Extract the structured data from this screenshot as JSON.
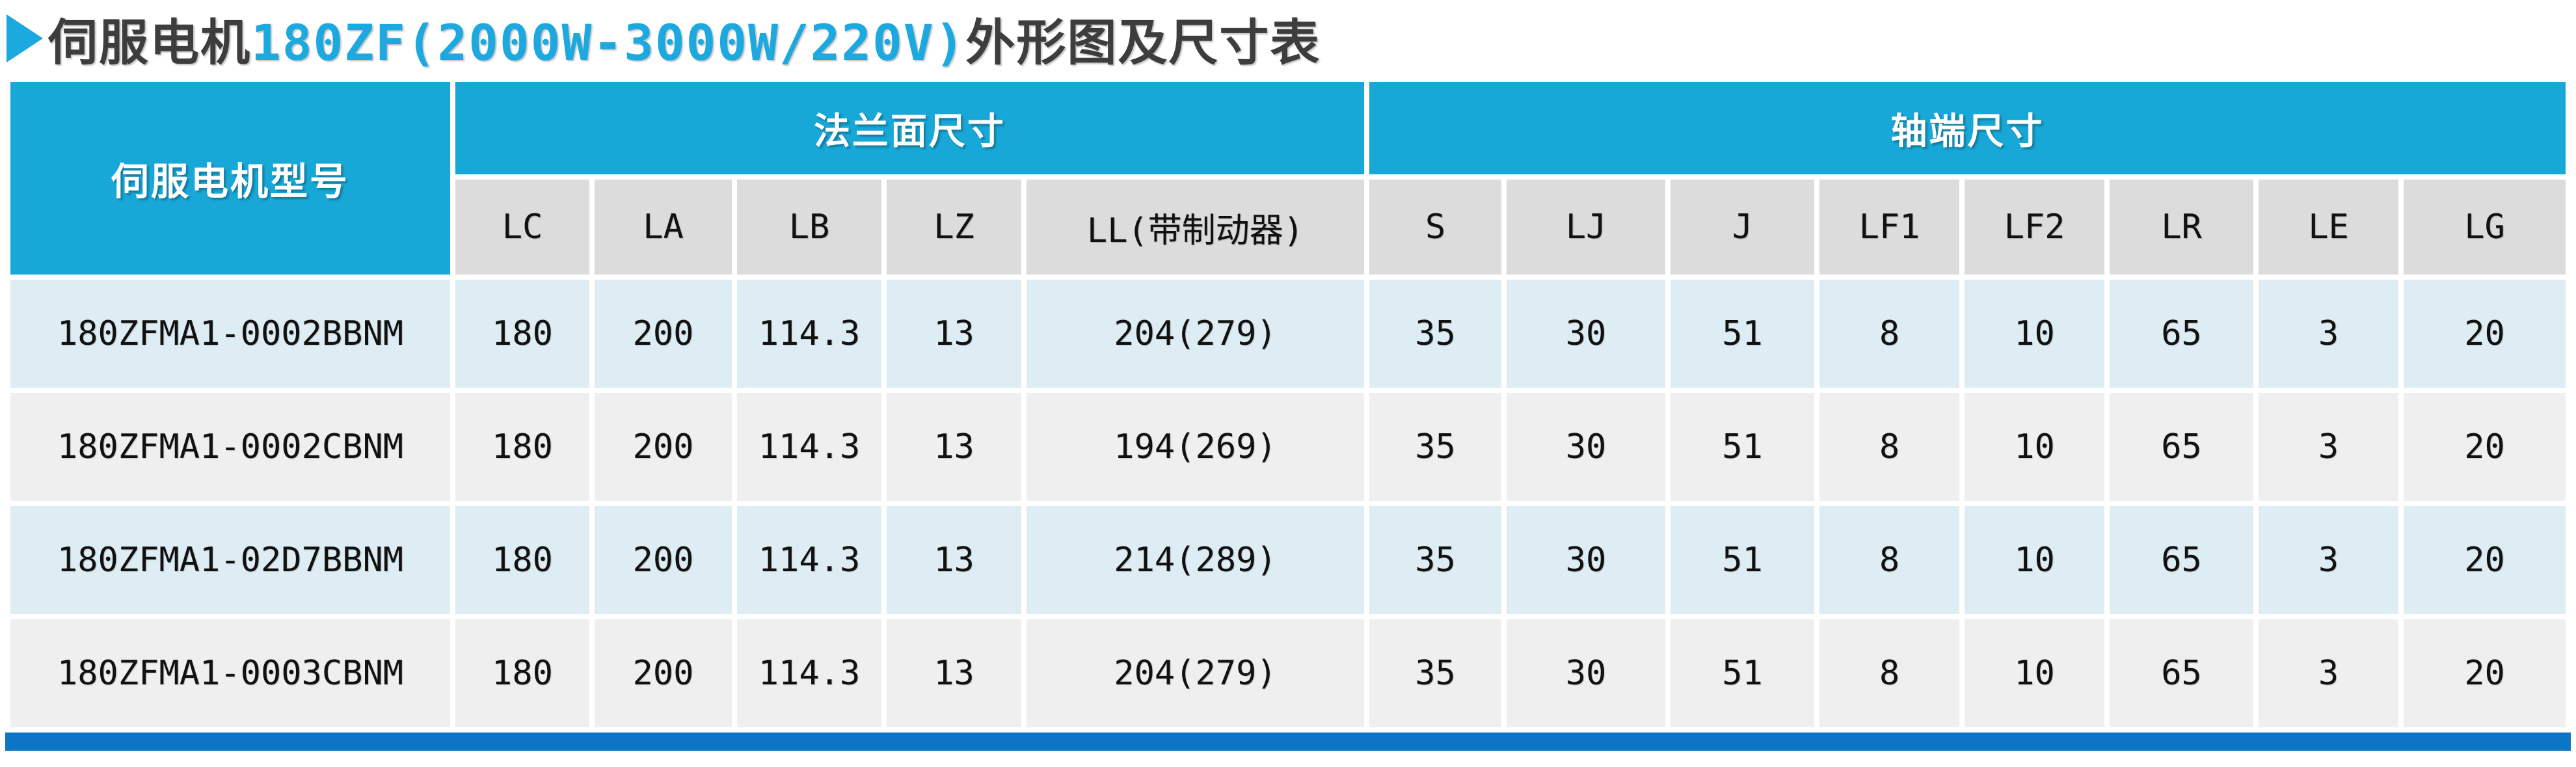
{
  "title": {
    "part_dark_1": "伺服电机",
    "part_blue": "180ZF(2000W-3000W/220V)",
    "part_dark_2": "外形图及尺寸表"
  },
  "colors": {
    "header_cyan": "#18A8D8",
    "subheader_gray": "#DCDCDC",
    "row_blue": "#DEEDF3",
    "row_gray": "#EFEFEF",
    "bottom_bar_blue": "#0D75C5",
    "title_blue": "#1BA9E0",
    "title_dark": "#3D3D3D"
  },
  "table": {
    "model_header": "伺服电机型号",
    "groups": [
      {
        "label": "法兰面尺寸",
        "span": 5
      },
      {
        "label": "轴端尺寸",
        "span": 8
      }
    ],
    "columns": [
      "LC",
      "LA",
      "LB",
      "LZ",
      "LL(带制动器)",
      "S",
      "LJ",
      "J",
      "LF1",
      "LF2",
      "LR",
      "LE",
      "LG"
    ],
    "rows": [
      {
        "model": "180ZFMA1-0002BBNM",
        "values": [
          "180",
          "200",
          "114.3",
          "13",
          "204(279)",
          "35",
          "30",
          "51",
          "8",
          "10",
          "65",
          "3",
          "20"
        ]
      },
      {
        "model": "180ZFMA1-0002CBNM",
        "values": [
          "180",
          "200",
          "114.3",
          "13",
          "194(269)",
          "35",
          "30",
          "51",
          "8",
          "10",
          "65",
          "3",
          "20"
        ]
      },
      {
        "model": "180ZFMA1-02D7BBNM",
        "values": [
          "180",
          "200",
          "114.3",
          "13",
          "214(289)",
          "35",
          "30",
          "51",
          "8",
          "10",
          "65",
          "3",
          "20"
        ]
      },
      {
        "model": "180ZFMA1-0003CBNM",
        "values": [
          "180",
          "200",
          "114.3",
          "13",
          "204(279)",
          "35",
          "30",
          "51",
          "8",
          "10",
          "65",
          "3",
          "20"
        ]
      }
    ]
  }
}
